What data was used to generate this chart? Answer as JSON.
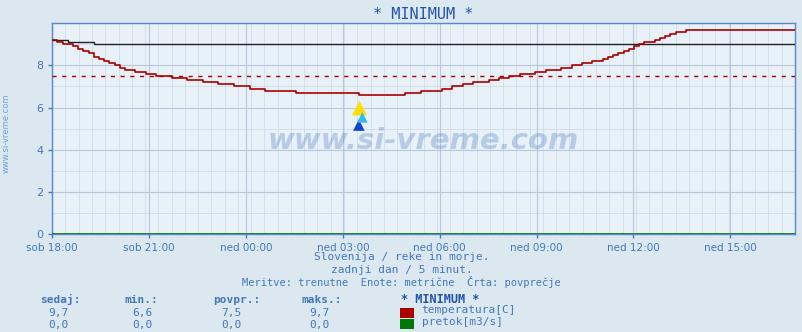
{
  "title": "* MINIMUM *",
  "bg_color": "#dce8f0",
  "plot_bg_color": "#e8f0f8",
  "grid_color_major": "#b8c8d8",
  "grid_color_minor": "#ccd8e8",
  "title_color": "#2255aa",
  "axis_color": "#5588cc",
  "tick_color": "#4477bb",
  "label_color": "#4477bb",
  "watermark": "www.si-vreme.com",
  "watermark_color": "#4477bb",
  "watermark_alpha": 0.3,
  "line_color_temp": "#aa0000",
  "line_color_flow": "#007700",
  "line_color_avg": "#222222",
  "avg_line_color": "#aa0000",
  "avg_value": 7.5,
  "ylim": [
    0,
    10.0
  ],
  "yticks": [
    0,
    2,
    4,
    6,
    8
  ],
  "xlabel_text": [
    "sob 18:00",
    "sob 21:00",
    "ned 00:00",
    "ned 03:00",
    "ned 06:00",
    "ned 09:00",
    "ned 12:00",
    "ned 15:00"
  ],
  "xticks_norm": [
    0.0,
    0.1304,
    0.2609,
    0.3913,
    0.5217,
    0.6522,
    0.7826,
    0.913
  ],
  "subtitle1": "Slovenija / reke in morje.",
  "subtitle2": "zadnji dan / 5 minut.",
  "subtitle3": "Meritve: trenutne  Enote: metrične  Črta: povprečje",
  "footer_label_color": "#4477bb",
  "footer_headers": [
    "sedaj:",
    "min.:",
    "povpr.:",
    "maks.:"
  ],
  "footer_temp": [
    "9,7",
    "6,6",
    "7,5",
    "9,7"
  ],
  "footer_flow": [
    "0,0",
    "0,0",
    "0,0",
    "0,0"
  ],
  "legend_title": "* MINIMUM *",
  "legend_temp": "temperatura[C]",
  "legend_flow": "pretok[m3/s]",
  "left_label": "www.si-vreme.com",
  "avg_data": [
    9.2,
    9.2,
    9.2,
    9.1,
    9.1,
    9.1,
    9.1,
    9.1,
    9.0,
    9.0,
    9.0,
    9.0,
    9.0,
    9.0,
    9.0,
    9.0,
    9.0,
    9.0,
    9.0,
    9.0,
    9.0,
    9.0,
    9.0,
    9.0,
    9.0,
    9.0,
    9.0,
    9.0,
    9.0,
    9.0,
    9.0,
    9.0,
    9.0,
    9.0,
    9.0,
    9.0,
    9.0,
    9.0,
    9.0,
    9.0,
    9.0,
    9.0,
    9.0,
    9.0,
    9.0,
    9.0,
    9.0,
    9.0,
    9.0,
    9.0,
    9.0,
    9.0,
    9.0,
    9.0,
    9.0,
    9.0,
    9.0,
    9.0,
    9.0,
    9.0,
    9.0,
    9.0,
    9.0,
    9.0,
    9.0,
    9.0,
    9.0,
    9.0,
    9.0,
    9.0,
    9.0,
    9.0,
    9.0,
    9.0,
    9.0,
    9.0,
    9.0,
    9.0,
    9.0,
    9.0,
    9.0,
    9.0,
    9.0,
    9.0,
    9.0,
    9.0,
    9.0,
    9.0,
    9.0,
    9.0,
    9.0,
    9.0,
    9.0,
    9.0,
    9.0,
    9.0,
    9.0,
    9.0,
    9.0,
    9.0,
    9.0,
    9.0,
    9.0,
    9.0,
    9.0,
    9.0,
    9.0,
    9.0,
    9.0,
    9.0,
    9.0,
    9.0,
    9.0,
    9.0,
    9.0,
    9.0,
    9.0,
    9.0,
    9.0,
    9.0,
    9.0,
    9.0,
    9.0,
    9.0,
    9.0,
    9.0,
    9.0,
    9.0,
    9.0,
    9.0,
    9.0,
    9.0,
    9.0,
    9.0,
    9.0,
    9.0,
    9.0,
    9.0,
    9.0,
    9.0,
    9.0,
    9.0,
    9.0,
    9.0
  ],
  "temp_data": [
    9.2,
    9.1,
    9.0,
    9.0,
    8.9,
    8.8,
    8.7,
    8.6,
    8.4,
    8.3,
    8.2,
    8.1,
    8.0,
    7.9,
    7.8,
    7.8,
    7.7,
    7.7,
    7.6,
    7.6,
    7.5,
    7.5,
    7.5,
    7.4,
    7.4,
    7.4,
    7.3,
    7.3,
    7.3,
    7.2,
    7.2,
    7.2,
    7.1,
    7.1,
    7.1,
    7.0,
    7.0,
    7.0,
    6.9,
    6.9,
    6.9,
    6.8,
    6.8,
    6.8,
    6.8,
    6.8,
    6.8,
    6.7,
    6.7,
    6.7,
    6.7,
    6.7,
    6.7,
    6.7,
    6.7,
    6.7,
    6.7,
    6.7,
    6.7,
    6.6,
    6.6,
    6.6,
    6.6,
    6.6,
    6.6,
    6.6,
    6.6,
    6.6,
    6.7,
    6.7,
    6.7,
    6.8,
    6.8,
    6.8,
    6.8,
    6.9,
    6.9,
    7.0,
    7.0,
    7.1,
    7.1,
    7.2,
    7.2,
    7.2,
    7.3,
    7.3,
    7.4,
    7.4,
    7.5,
    7.5,
    7.6,
    7.6,
    7.6,
    7.7,
    7.7,
    7.8,
    7.8,
    7.8,
    7.9,
    7.9,
    8.0,
    8.0,
    8.1,
    8.1,
    8.2,
    8.2,
    8.3,
    8.4,
    8.5,
    8.6,
    8.7,
    8.8,
    8.9,
    9.0,
    9.1,
    9.1,
    9.2,
    9.3,
    9.4,
    9.5,
    9.6,
    9.6,
    9.7,
    9.7,
    9.7,
    9.7,
    9.7,
    9.7,
    9.7,
    9.7,
    9.7,
    9.7,
    9.7,
    9.7,
    9.7,
    9.7,
    9.7,
    9.7,
    9.7,
    9.7,
    9.7,
    9.7,
    9.7,
    9.7
  ],
  "flow_data_value": 0.0
}
